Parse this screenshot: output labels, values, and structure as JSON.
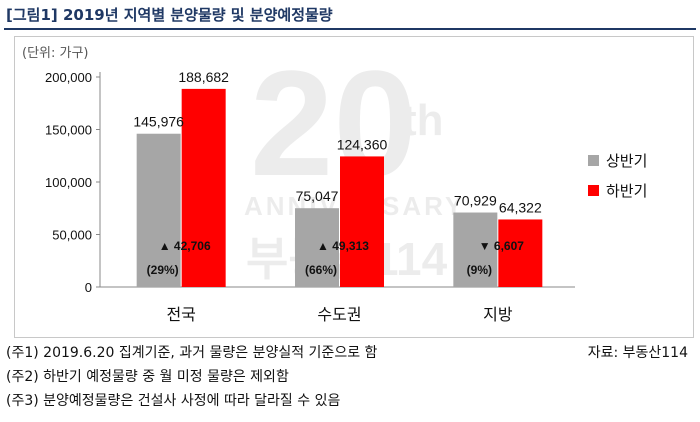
{
  "title": "[그림1] 2019년 지역별 분양물량 및 분양예정물량",
  "unit_label": "(단위: 가구)",
  "watermark": {
    "big": "20",
    "sup": "th",
    "text": "ANNIVERSARY",
    "brand": "부동산114"
  },
  "notes": [
    "(주1) 2019.6.20 집계기준, 과거 물량은 분양실적 기준으로 함",
    "(주2) 하반기 예정물량 중 월 미정 물량은 제외함",
    "(주3) 분양예정물량은 건설사 사정에 따라 달라질 수 있음"
  ],
  "source": "자료: 부동산114",
  "colors": {
    "first_half": "#a6a6a6",
    "second_half": "#ff0000",
    "title": "#1f3864"
  },
  "chart_data": {
    "type": "bar",
    "categories": [
      "전국",
      "수도권",
      "지방"
    ],
    "series": [
      {
        "name": "상반기",
        "values": [
          145976,
          75047,
          70929
        ],
        "labels": [
          "145,976",
          "75,047",
          "70,929"
        ]
      },
      {
        "name": "하반기",
        "values": [
          188682,
          124360,
          64322
        ],
        "labels": [
          "188,682",
          "124,360",
          "64,322"
        ]
      }
    ],
    "change_labels": [
      {
        "direction": "up",
        "text": "▲ 42,706",
        "pct": "(29%)"
      },
      {
        "direction": "up",
        "text": "▲ 49,313",
        "pct": "(66%)"
      },
      {
        "direction": "down",
        "text": "▼ 6,607",
        "pct": "(9%)"
      }
    ],
    "ylim": [
      0,
      200000
    ],
    "yticks": [
      0,
      50000,
      100000,
      150000,
      200000
    ],
    "ytick_labels": [
      "0",
      "50,000",
      "100,000",
      "150,000",
      "200,000"
    ],
    "legend": "right"
  }
}
